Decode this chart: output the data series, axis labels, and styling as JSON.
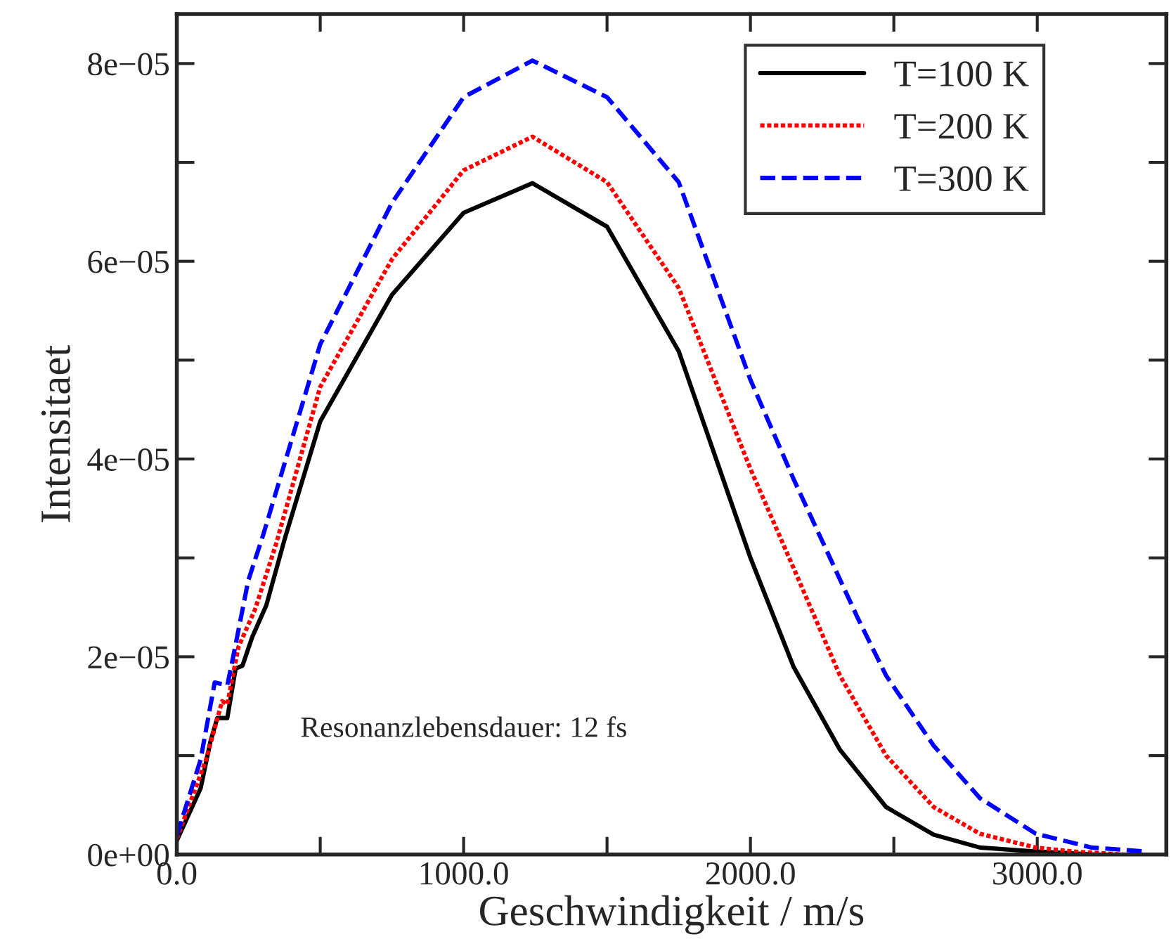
{
  "chart_data": {
    "type": "line",
    "xlabel": "Geschwindigkeit / m/s",
    "ylabel": "Intensitaet",
    "annotations": [
      "Resonanzlebensdauer: 12 fs"
    ],
    "xlim": [
      0,
      3450
    ],
    "ylim": [
      0,
      8.5e-05
    ],
    "xticks": [
      {
        "value": 0,
        "label": "0.0"
      },
      {
        "value": 500,
        "label": null
      },
      {
        "value": 1000,
        "label": "1000.0"
      },
      {
        "value": 1500,
        "label": null
      },
      {
        "value": 2000,
        "label": "2000.0"
      },
      {
        "value": 2500,
        "label": null
      },
      {
        "value": 3000,
        "label": "3000.0"
      }
    ],
    "yticks": [
      {
        "value": 0,
        "label": "0e+00"
      },
      {
        "value": 1e-05,
        "label": null
      },
      {
        "value": 2e-05,
        "label": "2e−05"
      },
      {
        "value": 3e-05,
        "label": null
      },
      {
        "value": 4e-05,
        "label": "4e−05"
      },
      {
        "value": 5e-05,
        "label": null
      },
      {
        "value": 6e-05,
        "label": "6e−05"
      },
      {
        "value": 7e-05,
        "label": null
      },
      {
        "value": 8e-05,
        "label": "8e−05"
      }
    ],
    "grid": false,
    "legend": "top right",
    "marker": "none",
    "series": [
      {
        "name": "T=100 K",
        "color": "#000000",
        "line_style": "solid",
        "x": [
          0,
          83,
          117,
          141,
          176,
          205,
          229,
          263,
          312,
          376,
          500,
          750,
          1000,
          1240,
          1500,
          1750,
          2000,
          2150,
          2312,
          2473,
          2639,
          2800,
          2995,
          3200
        ],
        "values": [
          1.4e-06,
          6.7e-06,
          1.14e-05,
          1.38e-05,
          1.38e-05,
          1.88e-05,
          1.91e-05,
          2.2e-05,
          2.52e-05,
          3.19e-05,
          4.38e-05,
          5.66e-05,
          6.49e-05,
          6.79e-05,
          6.35e-05,
          5.09e-05,
          3e-05,
          1.9e-05,
          1.06e-05,
          4.8e-06,
          2e-06,
          7e-07,
          3e-07,
          0
        ]
      },
      {
        "name": "T=200 K",
        "color": "#ff0000",
        "line_style": "dotted",
        "x": [
          0,
          102,
          158,
          176,
          215,
          273,
          346,
          500,
          750,
          1000,
          1240,
          1500,
          1750,
          2000,
          2150,
          2312,
          2473,
          2639,
          2800,
          2995,
          3126,
          3300
        ],
        "values": [
          1.6e-06,
          9.6e-06,
          1.55e-05,
          1.52e-05,
          2.1e-05,
          2.48e-05,
          3.14e-05,
          4.73e-05,
          6.02e-05,
          6.92e-05,
          7.26e-05,
          6.8e-05,
          5.73e-05,
          3.9e-05,
          2.9e-05,
          1.81e-05,
          1e-05,
          4.8e-06,
          2.1e-06,
          7e-07,
          3e-07,
          0
        ]
      },
      {
        "name": "T=300 K",
        "color": "#0000ff",
        "line_style": "dashed",
        "x": [
          0,
          83,
          132,
          176,
          200,
          249,
          302,
          500,
          750,
          1000,
          1240,
          1500,
          1750,
          2000,
          2150,
          2376,
          2473,
          2639,
          2800,
          2995,
          3190,
          3385
        ],
        "values": [
          1.9e-06,
          9.6e-06,
          1.74e-05,
          1.71e-05,
          2.05e-05,
          2.77e-05,
          3.24e-05,
          5.16e-05,
          6.59e-05,
          7.66e-05,
          8.03e-05,
          7.66e-05,
          6.8e-05,
          4.8e-05,
          3.8e-05,
          2.38e-05,
          1.81e-05,
          1.1e-05,
          5.7e-06,
          2.1e-06,
          7e-07,
          3e-07
        ]
      }
    ]
  }
}
